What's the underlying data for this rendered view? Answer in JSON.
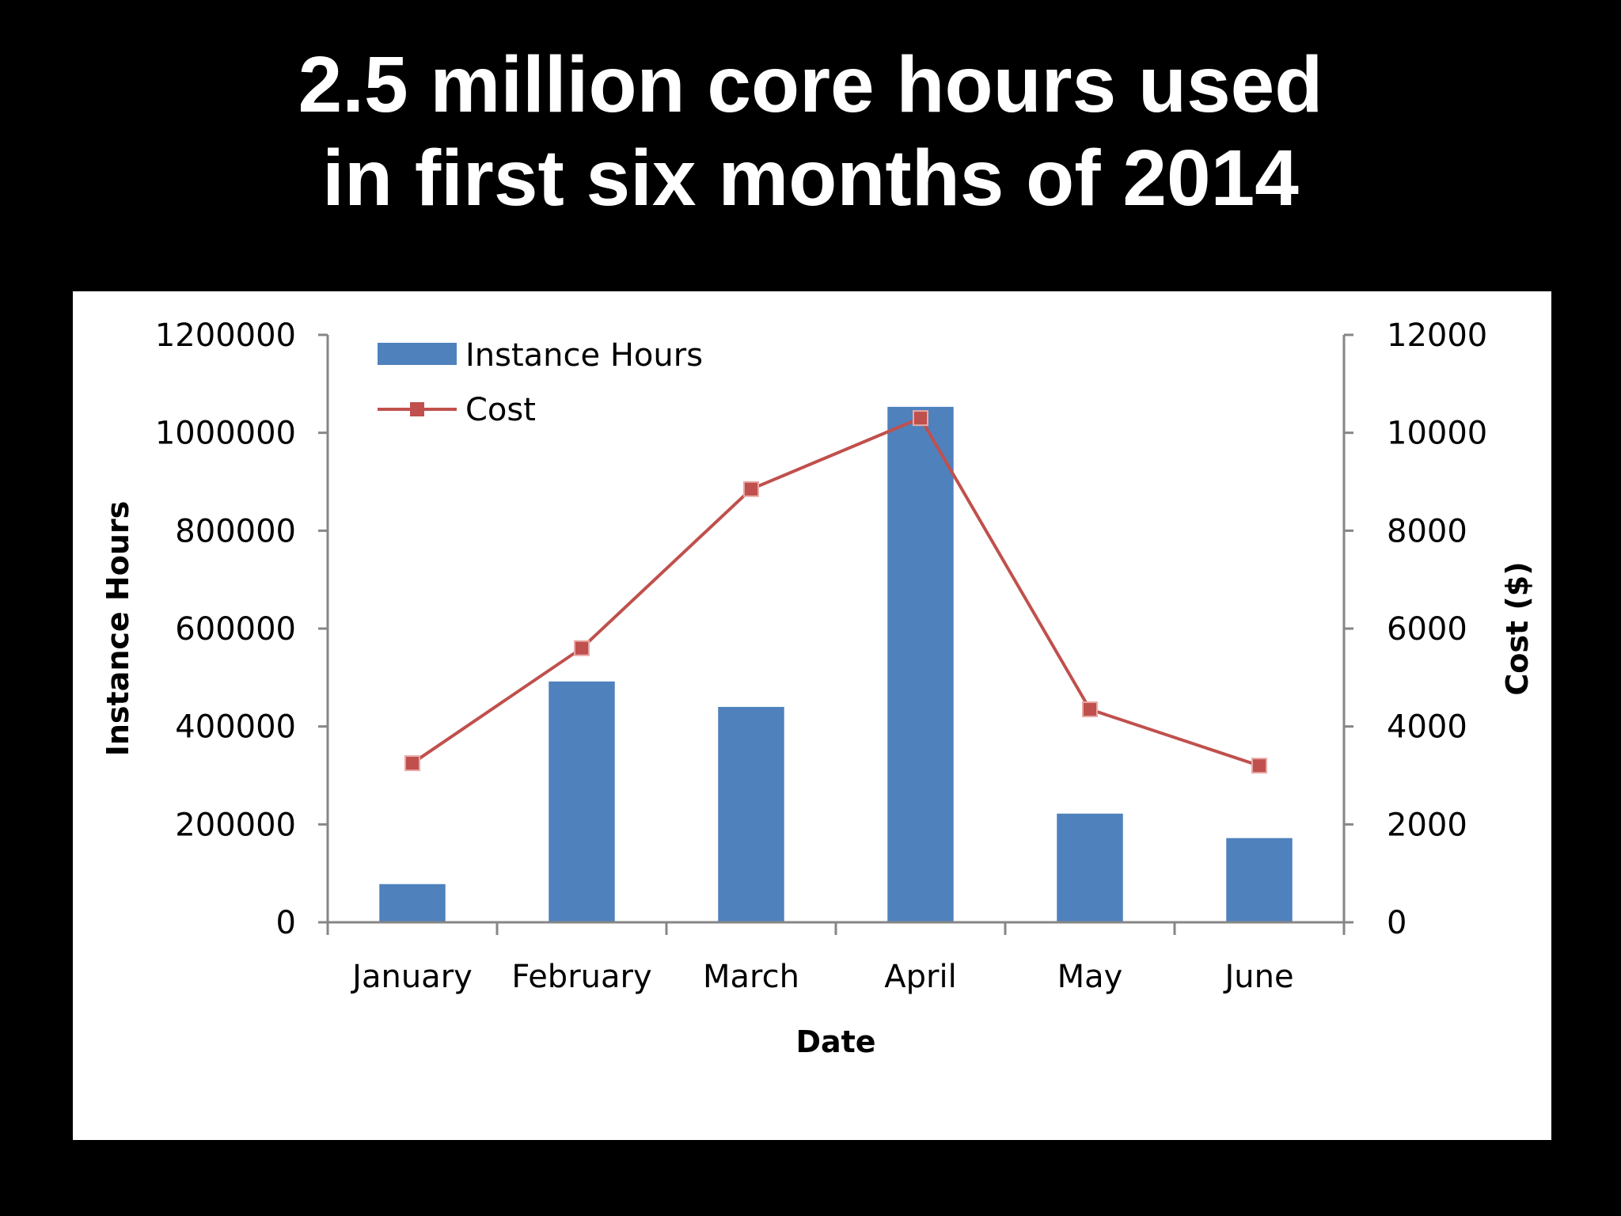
{
  "slide": {
    "title_line_1": "2.5 million core hours used",
    "title_line_2": "in first six months of 2014",
    "background_color": "#000000",
    "title_color": "#ffffff"
  },
  "chart_data": {
    "type": "bar",
    "title": "2.5 million core hours used in first six months of 2014",
    "categories": [
      "January",
      "February",
      "March",
      "April",
      "May",
      "June"
    ],
    "xlabel": "Date",
    "ylabel": "Instance Hours",
    "y2label": "Cost ($)",
    "ylim": [
      0,
      1200000
    ],
    "y2lim": [
      0,
      12000
    ],
    "yticks": [
      "0",
      "200000",
      "400000",
      "600000",
      "800000",
      "1000000",
      "1200000"
    ],
    "y2ticks": [
      "0",
      "2000",
      "4000",
      "6000",
      "8000",
      "10000",
      "12000"
    ],
    "grid": false,
    "legend_position": "top-left",
    "series": [
      {
        "name": "Instance Hours",
        "type": "bar",
        "axis": "left",
        "color": "#4f81bd",
        "values": [
          78000,
          492000,
          440000,
          1053000,
          222000,
          172000
        ]
      },
      {
        "name": "Cost",
        "type": "line",
        "axis": "right",
        "color": "#c0504d",
        "marker": "square",
        "values": [
          3250,
          5600,
          8850,
          10300,
          4350,
          3200
        ]
      }
    ]
  }
}
